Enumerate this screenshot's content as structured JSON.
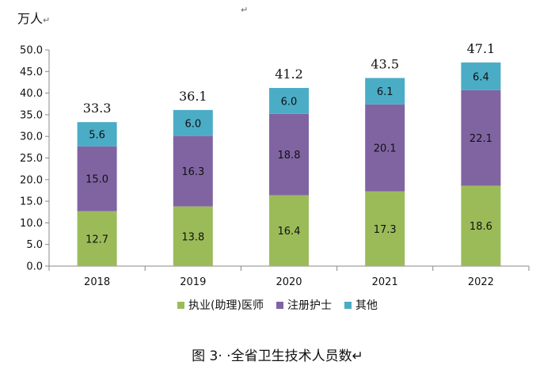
{
  "unit_label": "万人",
  "return_mark_top": "↵",
  "caption": "图 3· ·全省卫生技术人员数↵",
  "legend_suffix": "↵",
  "chart_data": {
    "type": "bar",
    "stacked": true,
    "categories": [
      "2018",
      "2019",
      "2020",
      "2021",
      "2022"
    ],
    "series": [
      {
        "name": "执业(助理)医师",
        "color": "#9BBB59",
        "values": [
          12.7,
          13.8,
          16.4,
          17.3,
          18.6
        ]
      },
      {
        "name": "注册护士",
        "color": "#8064A2",
        "values": [
          15.0,
          16.3,
          18.8,
          20.1,
          22.1
        ]
      },
      {
        "name": "其他",
        "color": "#4BACC6",
        "values": [
          5.6,
          6.0,
          6.0,
          6.1,
          6.4
        ]
      }
    ],
    "totals": [
      "33.3",
      "36.1",
      "41.2",
      "43.5",
      "47.1"
    ],
    "ylim": [
      0,
      50
    ],
    "yticks": [
      "0.0",
      "5.0",
      "10.0",
      "15.0",
      "20.0",
      "25.0",
      "30.0",
      "35.0",
      "40.0",
      "45.0",
      "50.0"
    ],
    "legend_position": "bottom",
    "grid": false
  }
}
